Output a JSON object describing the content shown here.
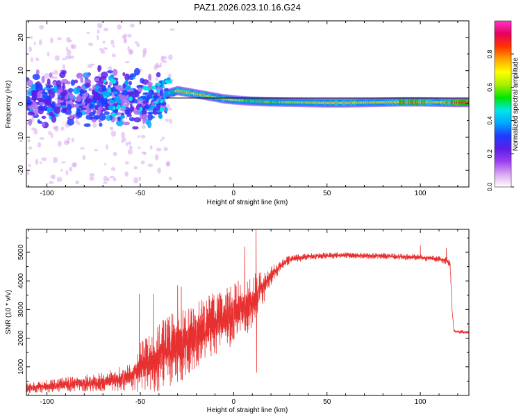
{
  "title": "PAZ1.2026.023.10.16.G24",
  "chart_data": [
    {
      "type": "heatmap",
      "name": "spectrogram",
      "xlabel": "Height of straight line (km)",
      "ylabel": "Frequency (Hz)",
      "xlim": [
        -111,
        126
      ],
      "ylim": [
        -25,
        25
      ],
      "xticks": [
        -100,
        -50,
        0,
        50,
        100
      ],
      "xtick_labels": [
        "-100",
        "-50",
        "0",
        "50",
        "100"
      ],
      "yticks": [
        -20,
        -10,
        0,
        10,
        20
      ],
      "ytick_labels": [
        "-20",
        "-10",
        "0",
        "10",
        "20"
      ],
      "colorbar": {
        "label": "Normalized spectral amplitude",
        "range": [
          0,
          1
        ],
        "ticks": [
          0.0,
          0.2,
          0.4,
          0.6,
          0.8
        ],
        "tick_labels": [
          "0.0",
          "0.2",
          "0.4",
          "0.6",
          "0.8"
        ],
        "colors": [
          "#ffffff",
          "#d9a8f0",
          "#9b3ff0",
          "#5a1ee6",
          "#1f3cff",
          "#00a8ff",
          "#00e6e6",
          "#00e600",
          "#a8f000",
          "#ffff00",
          "#ffa500",
          "#ff3300",
          "#e6005a",
          "#ff33cc"
        ]
      },
      "ridge": {
        "description_points_x_km": [
          -36,
          -30,
          -25,
          -20,
          -15,
          -10,
          -5,
          0,
          5,
          10,
          20,
          30,
          40,
          50,
          60,
          70,
          80,
          90,
          100,
          110,
          120,
          126
        ],
        "freq_hz": [
          3.0,
          4.0,
          3.5,
          3.0,
          2.5,
          2.0,
          1.5,
          1.2,
          1.0,
          0.8,
          0.6,
          0.5,
          0.4,
          0.3,
          0.3,
          0.4,
          0.5,
          0.6,
          0.6,
          0.5,
          0.4,
          0.4
        ],
        "amplitude": [
          0.35,
          0.7,
          0.75,
          0.7,
          0.72,
          0.68,
          0.7,
          0.72,
          0.6,
          0.55,
          0.6,
          0.62,
          0.65,
          0.7,
          0.72,
          0.68,
          0.7,
          0.78,
          0.82,
          0.7,
          0.85,
          0.85
        ]
      },
      "scatter_region": {
        "x_range_km": [
          -111,
          -36
        ],
        "freq_band_hz": [
          -12,
          12
        ],
        "outlier_band_hz": [
          -25,
          25
        ]
      }
    },
    {
      "type": "line",
      "name": "snr",
      "xlabel": "Height of straight line (km)",
      "ylabel": "SNR (10 * v/v)",
      "xlim": [
        -111,
        126
      ],
      "ylim": [
        0,
        5800
      ],
      "xticks": [
        -100,
        -50,
        0,
        50,
        100
      ],
      "xtick_labels": [
        "-100",
        "-50",
        "0",
        "50",
        "100"
      ],
      "yticks": [
        1000,
        2000,
        3000,
        4000,
        5000
      ],
      "ytick_labels": [
        "1000",
        "2000",
        "3000",
        "4000",
        "5000"
      ],
      "color": "#e83030",
      "trend": {
        "x": [
          -111,
          -90,
          -70,
          -55,
          -50,
          -40,
          -30,
          -20,
          -10,
          0,
          10,
          15,
          20,
          25,
          30,
          40,
          50,
          60,
          70,
          80,
          90,
          100,
          110,
          115,
          116,
          117,
          118,
          120,
          126
        ],
        "y": [
          250,
          380,
          480,
          650,
          950,
          1350,
          1700,
          2100,
          2500,
          2850,
          3300,
          3700,
          4150,
          4550,
          4750,
          4850,
          4880,
          4900,
          4880,
          4870,
          4840,
          4820,
          4760,
          4700,
          4500,
          3000,
          2250,
          2230,
          2200
        ],
        "noise_amplitude": [
          180,
          260,
          340,
          500,
          900,
          1200,
          1300,
          1200,
          1100,
          1100,
          1000,
          700,
          350,
          200,
          150,
          120,
          110,
          110,
          110,
          110,
          110,
          110,
          120,
          150,
          150,
          60,
          60,
          60,
          60
        ]
      },
      "spikes": [
        {
          "x": -50.5,
          "y": 3550
        },
        {
          "x": -43,
          "y": 3550
        },
        {
          "x": -30,
          "y": 3850
        },
        {
          "x": -28,
          "y": 3800
        },
        {
          "x": 6,
          "y": 5200
        },
        {
          "x": 12,
          "y": 5800
        },
        {
          "x": 12.3,
          "y": 800
        },
        {
          "x": 100,
          "y": 5250
        },
        {
          "x": 114,
          "y": 5150
        }
      ]
    }
  ]
}
